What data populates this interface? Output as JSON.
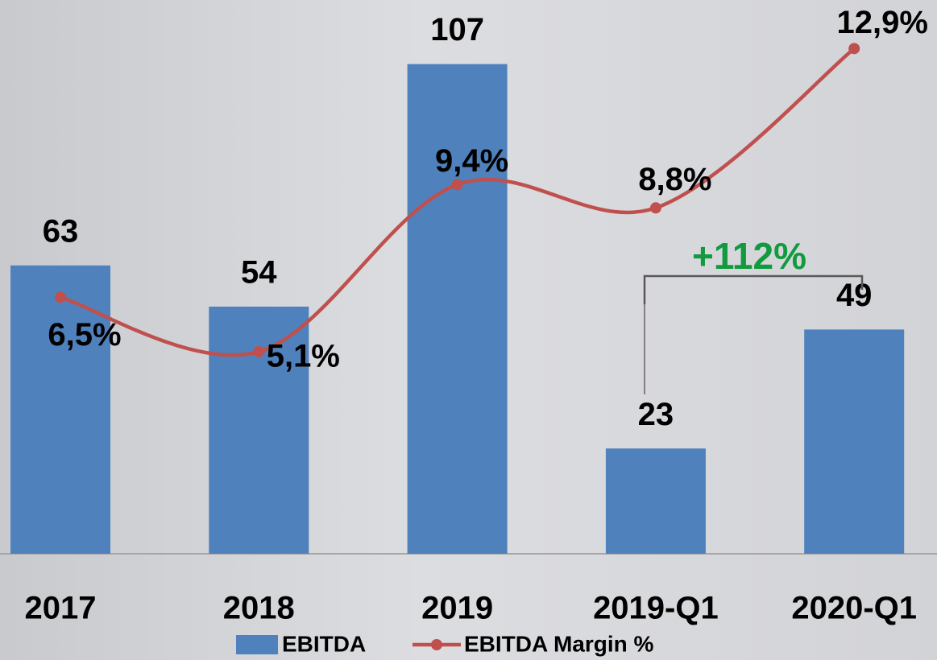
{
  "chart_data": {
    "type": "bar-line",
    "categories": [
      "2017",
      "2018",
      "2019",
      "2019-Q1",
      "2020-Q1"
    ],
    "series": [
      {
        "name": "EBITDA",
        "type": "bar",
        "color": "#4f81bd",
        "values": [
          63,
          54,
          107,
          23,
          49
        ]
      },
      {
        "name": "EBITDA Margin %",
        "type": "line",
        "axis": "y2",
        "color": "#c0504d",
        "values": [
          6.5,
          5.1,
          9.4,
          8.8,
          12.9
        ],
        "value_labels": [
          "6,5%",
          "5,1%",
          "9,4%",
          "8,8%",
          "12,9%"
        ]
      }
    ],
    "ylim": [
      0,
      121
    ],
    "y2lim": [
      -0.1,
      14.15
    ],
    "annotation": "+112%",
    "annotation_color": "#119a3e"
  }
}
